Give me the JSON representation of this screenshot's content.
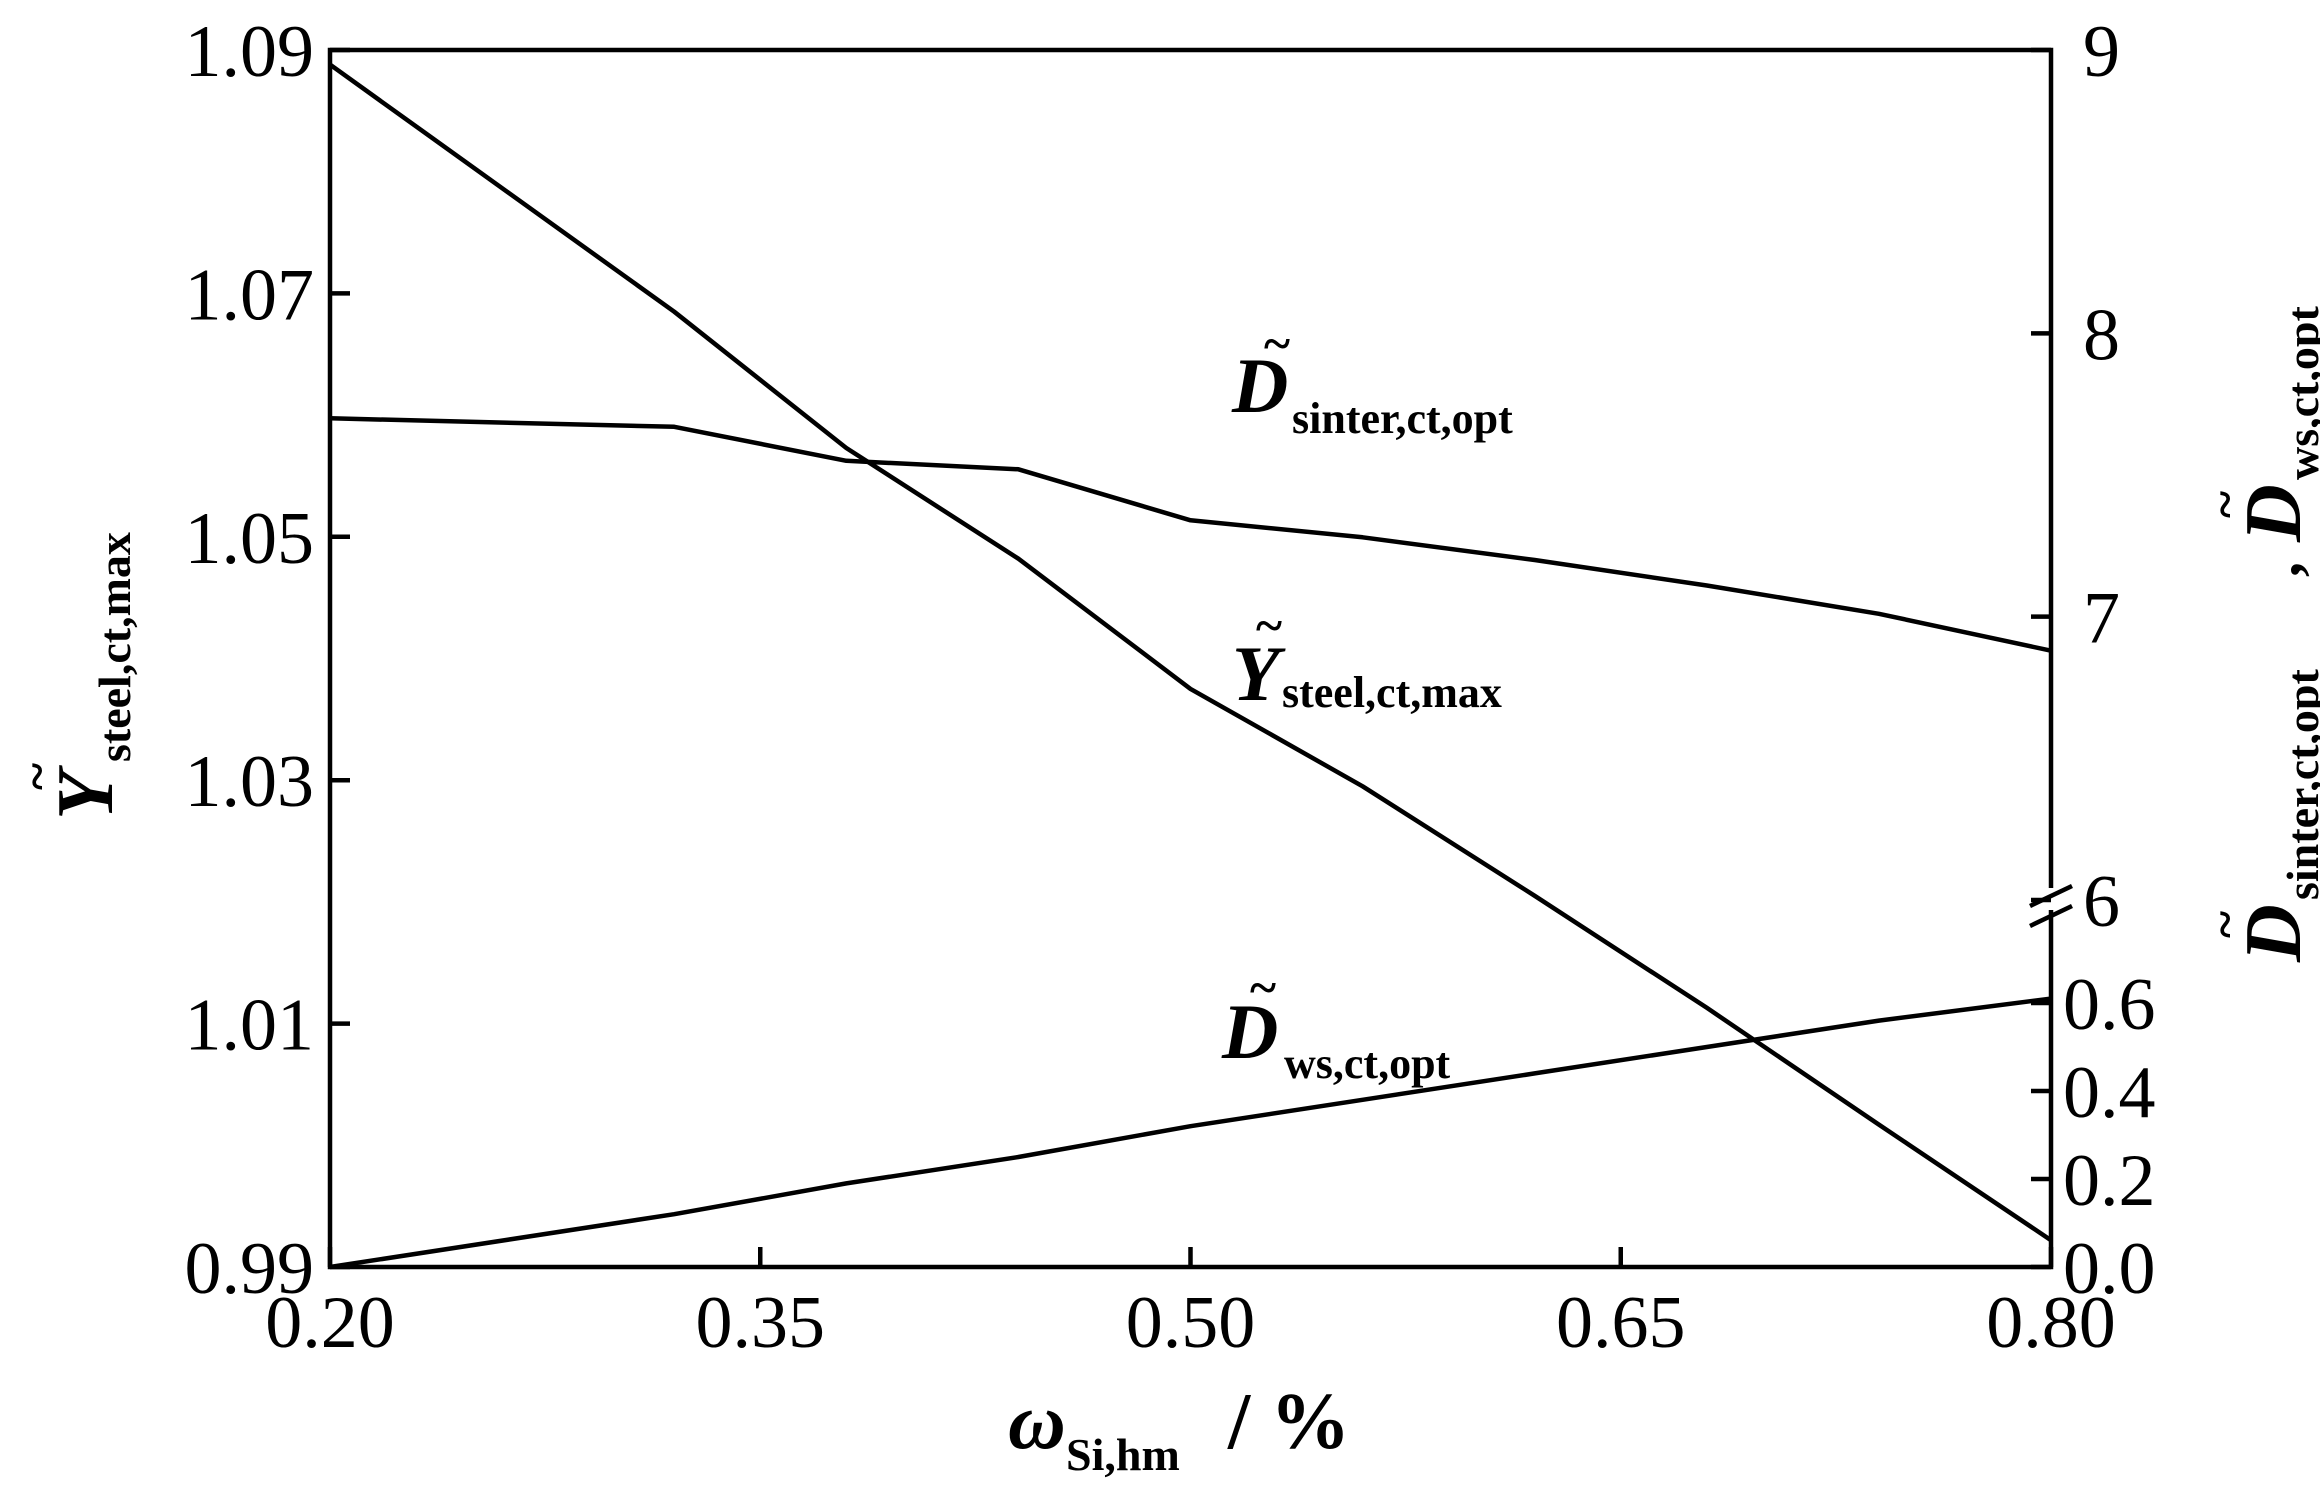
{
  "chart_data": {
    "type": "line",
    "xlabel": {
      "main": "ω",
      "sub": "Si,hm",
      "unit": " / %"
    },
    "y_left_label": {
      "main": "Y",
      "tilde": "~",
      "sub": "steel,ct,max"
    },
    "y_right_label": {
      "main1": "D",
      "tilde1": "~",
      "sub1": "sinter,ct,opt",
      "comma": " , ",
      "main2": "D",
      "tilde2": "~",
      "sub2": "ws,ct,opt"
    },
    "x_ticks": [
      "0.20",
      "0.35",
      "0.50",
      "0.65",
      "0.80"
    ],
    "x_range": [
      0.2,
      0.8
    ],
    "y_left_ticks": [
      "0.99",
      "1.01",
      "1.03",
      "1.05",
      "1.07",
      "1.09"
    ],
    "y_left_range": [
      0.99,
      1.09
    ],
    "y_right_upper_ticks": [
      "6",
      "7",
      "8",
      "9"
    ],
    "y_right_upper_range": [
      6,
      9
    ],
    "y_right_lower_ticks": [
      "0.0",
      "0.2",
      "0.4",
      "0.6"
    ],
    "y_right_lower_range": [
      0,
      0.6
    ],
    "axis_break": "right axis break between 0.6 and 6",
    "series": [
      {
        "name": "Y steel,ct,max",
        "axis": "left",
        "annotation": {
          "main": "Y",
          "tilde": "~",
          "sub": "steel,ct,max"
        },
        "x": [
          0.2,
          0.32,
          0.38,
          0.44,
          0.5,
          0.56,
          0.62,
          0.68,
          0.74,
          0.8
        ],
        "y": [
          1.0888,
          1.0685,
          1.0573,
          1.0482,
          1.0375,
          1.0295,
          1.0205,
          1.0113,
          1.0017,
          0.9922
        ]
      },
      {
        "name": "D sinter,ct,opt",
        "axis": "right-upper",
        "annotation": {
          "main": "D",
          "tilde": "~",
          "sub": "sinter,ct,opt"
        },
        "x": [
          0.2,
          0.32,
          0.38,
          0.44,
          0.5,
          0.56,
          0.62,
          0.68,
          0.74,
          0.8
        ],
        "y": [
          7.7,
          7.67,
          7.55,
          7.52,
          7.34,
          7.28,
          7.2,
          7.11,
          7.01,
          6.88
        ]
      },
      {
        "name": "D ws,ct,opt",
        "axis": "right-lower",
        "annotation": {
          "main": "D",
          "tilde": "~",
          "sub": "ws,ct,opt"
        },
        "x": [
          0.2,
          0.32,
          0.38,
          0.44,
          0.5,
          0.56,
          0.62,
          0.68,
          0.74,
          0.8
        ],
        "y": [
          0.0,
          0.12,
          0.19,
          0.25,
          0.32,
          0.38,
          0.44,
          0.5,
          0.56,
          0.61
        ]
      }
    ]
  }
}
